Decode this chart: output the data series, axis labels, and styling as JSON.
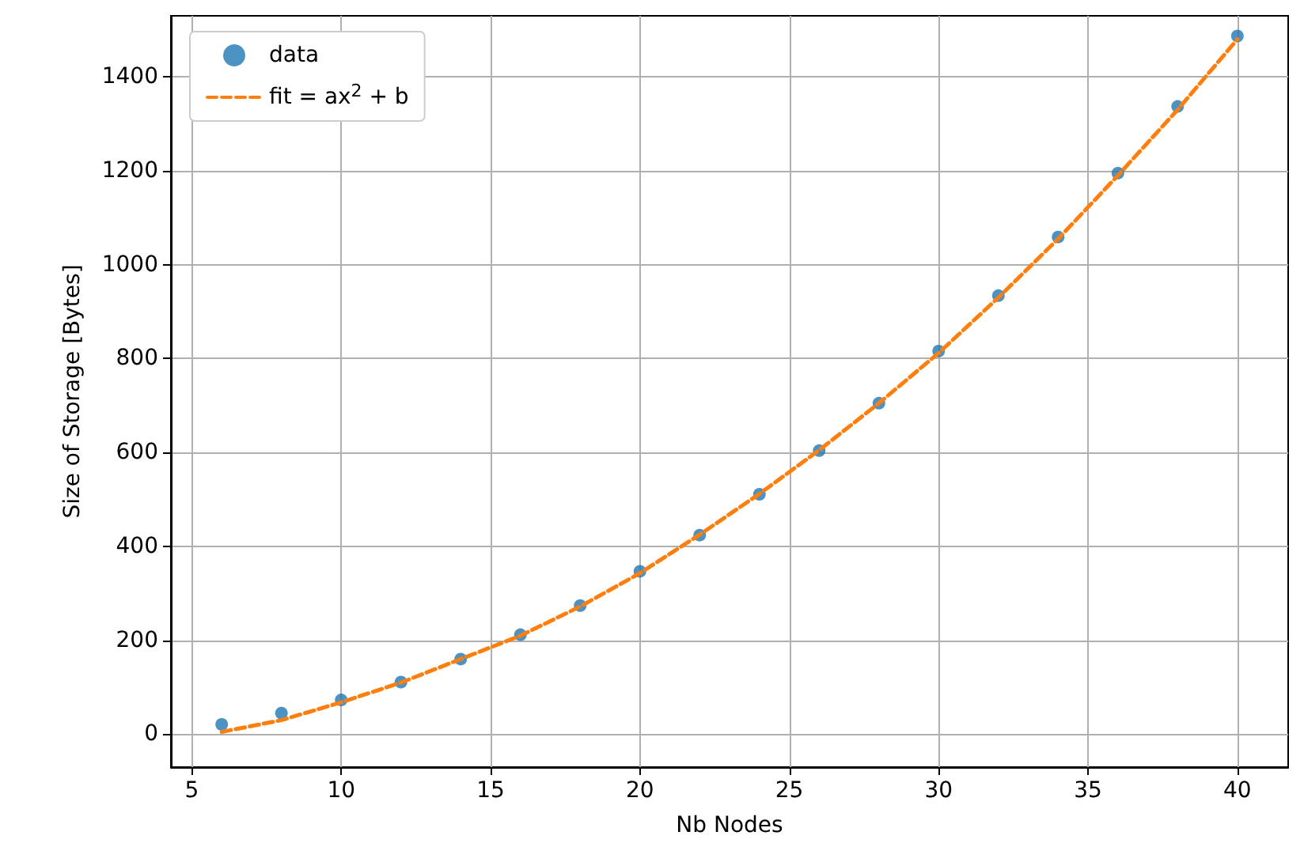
{
  "chart_data": {
    "type": "scatter",
    "xlabel": "Nb Nodes",
    "ylabel": "Size of Storage [Bytes]",
    "xlim": [
      4.3,
      41.7
    ],
    "ylim": [
      -70,
      1530
    ],
    "xticks": [
      5,
      10,
      15,
      20,
      25,
      30,
      35,
      40
    ],
    "yticks": [
      0,
      200,
      400,
      600,
      800,
      1000,
      1200,
      1400
    ],
    "grid": true,
    "legend": "top left",
    "series": [
      {
        "name": "data",
        "type": "scatter",
        "marker": "circle",
        "color": "#1f77b4",
        "x": [
          6,
          8,
          10,
          12,
          14,
          16,
          18,
          20,
          22,
          24,
          26,
          28,
          30,
          32,
          34,
          36,
          38,
          40
        ],
        "values": [
          21,
          45,
          73,
          111,
          160,
          212,
          274,
          347,
          424,
          511,
          604,
          705,
          816,
          934,
          1059,
          1195,
          1337,
          1487
        ]
      },
      {
        "name": "fit = ax$^{2}$ + b",
        "type": "line",
        "line_style": "dashed",
        "marker": "none",
        "color": "#ff7f0e",
        "x": [
          6,
          8,
          10,
          12,
          14,
          16,
          18,
          20,
          22,
          24,
          26,
          28,
          30,
          32,
          34,
          36,
          38,
          40
        ],
        "values": [
          5,
          30,
          68,
          110,
          160,
          210,
          272,
          343,
          425,
          512,
          605,
          705,
          812,
          930,
          1055,
          1190,
          1330,
          1480
        ]
      }
    ]
  }
}
